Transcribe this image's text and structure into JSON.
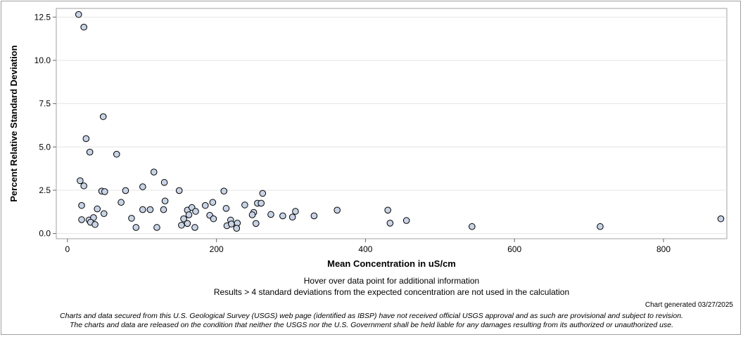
{
  "chart_data": {
    "type": "scatter",
    "title": "",
    "xlabel": "Mean Concentration in uS/cm",
    "ylabel": "Percent Relative Standard Deviation",
    "xlim": [
      -15,
      885
    ],
    "ylim": [
      -0.3,
      13.0
    ],
    "x_ticks": [
      0,
      200,
      400,
      600,
      800
    ],
    "y_ticks": [
      0.0,
      2.5,
      5.0,
      7.5,
      10.0,
      12.5
    ],
    "x_tick_labels": [
      "0",
      "200",
      "400",
      "600",
      "800"
    ],
    "y_tick_labels": [
      "0.0",
      "2.5",
      "5.0",
      "7.5",
      "10.0",
      "12.5"
    ],
    "grid": "horizontal",
    "marker_fill": "#c8d4e6",
    "marker_edge": "#000000",
    "points": [
      {
        "x": 15,
        "y": 12.65
      },
      {
        "x": 22,
        "y": 11.92
      },
      {
        "x": 48,
        "y": 6.75
      },
      {
        "x": 25,
        "y": 5.48
      },
      {
        "x": 30,
        "y": 4.7
      },
      {
        "x": 66,
        "y": 4.58
      },
      {
        "x": 116,
        "y": 3.55
      },
      {
        "x": 17,
        "y": 3.05
      },
      {
        "x": 22,
        "y": 2.75
      },
      {
        "x": 130,
        "y": 2.95
      },
      {
        "x": 101,
        "y": 2.7
      },
      {
        "x": 46,
        "y": 2.45
      },
      {
        "x": 50,
        "y": 2.42
      },
      {
        "x": 78,
        "y": 2.48
      },
      {
        "x": 150,
        "y": 2.48
      },
      {
        "x": 210,
        "y": 2.45
      },
      {
        "x": 262,
        "y": 2.32
      },
      {
        "x": 19,
        "y": 1.62
      },
      {
        "x": 72,
        "y": 1.8
      },
      {
        "x": 131,
        "y": 1.88
      },
      {
        "x": 185,
        "y": 1.62
      },
      {
        "x": 195,
        "y": 1.8
      },
      {
        "x": 238,
        "y": 1.65
      },
      {
        "x": 255,
        "y": 1.75
      },
      {
        "x": 260,
        "y": 1.75
      },
      {
        "x": 40,
        "y": 1.42
      },
      {
        "x": 101,
        "y": 1.38
      },
      {
        "x": 111,
        "y": 1.38
      },
      {
        "x": 129,
        "y": 1.38
      },
      {
        "x": 161,
        "y": 1.35
      },
      {
        "x": 167,
        "y": 1.5
      },
      {
        "x": 172,
        "y": 1.28
      },
      {
        "x": 213,
        "y": 1.45
      },
      {
        "x": 250,
        "y": 1.22
      },
      {
        "x": 306,
        "y": 1.28
      },
      {
        "x": 362,
        "y": 1.35
      },
      {
        "x": 430,
        "y": 1.35
      },
      {
        "x": 49,
        "y": 1.15
      },
      {
        "x": 86,
        "y": 0.88
      },
      {
        "x": 163,
        "y": 1.08
      },
      {
        "x": 191,
        "y": 1.05
      },
      {
        "x": 248,
        "y": 1.08
      },
      {
        "x": 273,
        "y": 1.1
      },
      {
        "x": 289,
        "y": 1.02
      },
      {
        "x": 302,
        "y": 0.95
      },
      {
        "x": 331,
        "y": 1.02
      },
      {
        "x": 19,
        "y": 0.8
      },
      {
        "x": 29,
        "y": 0.78
      },
      {
        "x": 35,
        "y": 0.92
      },
      {
        "x": 156,
        "y": 0.85
      },
      {
        "x": 196,
        "y": 0.85
      },
      {
        "x": 219,
        "y": 0.78
      },
      {
        "x": 455,
        "y": 0.75
      },
      {
        "x": 31,
        "y": 0.65
      },
      {
        "x": 37,
        "y": 0.52
      },
      {
        "x": 153,
        "y": 0.48
      },
      {
        "x": 161,
        "y": 0.58
      },
      {
        "x": 214,
        "y": 0.45
      },
      {
        "x": 220,
        "y": 0.55
      },
      {
        "x": 228,
        "y": 0.6
      },
      {
        "x": 253,
        "y": 0.58
      },
      {
        "x": 433,
        "y": 0.6
      },
      {
        "x": 92,
        "y": 0.35
      },
      {
        "x": 120,
        "y": 0.35
      },
      {
        "x": 171,
        "y": 0.35
      },
      {
        "x": 227,
        "y": 0.3
      },
      {
        "x": 543,
        "y": 0.4
      },
      {
        "x": 715,
        "y": 0.4
      },
      {
        "x": 877,
        "y": 0.85
      }
    ]
  },
  "notes": {
    "hover": "Hover over data point for additional information",
    "results": "Results > 4 standard deviations from the expected concentration are not used in the calculation",
    "generated": "Chart generated 03/27/2025",
    "disclaimer_line1": "Charts and data secured from this U.S. Geological Survey (USGS) web page (identified as IBSP) have not received official USGS approval and as such are provisional and subject to revision.",
    "disclaimer_line2": "The charts and data are released on the condition that neither the USGS nor the U.S. Government shall be held liable for any damages resulting from its authorized or unauthorized use."
  }
}
